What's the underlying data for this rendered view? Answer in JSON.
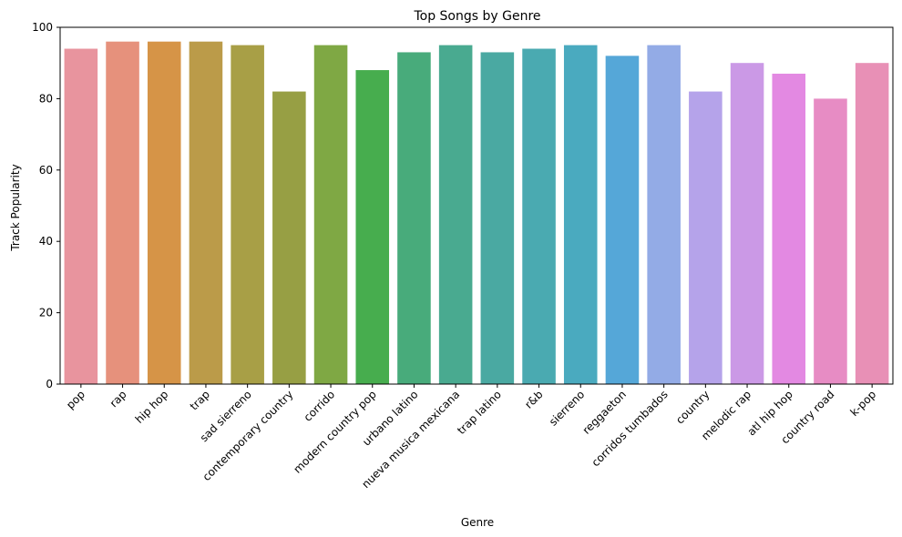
{
  "chart_data": {
    "type": "bar",
    "title": "Top Songs by Genre",
    "xlabel": "Genre",
    "ylabel": "Track Popularity",
    "ylim": [
      0,
      100
    ],
    "yticks": [
      0,
      20,
      40,
      60,
      80,
      100
    ],
    "grid": false,
    "categories": [
      "pop",
      "rap",
      "hip hop",
      "trap",
      "sad sierreno",
      "contemporary country",
      "corrido",
      "modern country pop",
      "urbano latino",
      "nueva musica mexicana",
      "trap latino",
      "r&b",
      "sierreno",
      "reggaeton",
      "corridos tumbados",
      "country",
      "melodic rap",
      "atl hip hop",
      "country road",
      "k-pop"
    ],
    "values": [
      94,
      96,
      96,
      96,
      95,
      82,
      95,
      88,
      93,
      95,
      93,
      94,
      95,
      92,
      95,
      82,
      90,
      87,
      80,
      90
    ],
    "colors": [
      "#e8949e",
      "#e6917c",
      "#d69447",
      "#bb9b49",
      "#a89f46",
      "#979f44",
      "#7fa844",
      "#47ad4e",
      "#48ab7b",
      "#49aa90",
      "#4aa9a2",
      "#4aaab1",
      "#4aaabf",
      "#55a7d8",
      "#93abe6",
      "#b5a3ea",
      "#cb99e6",
      "#e389e2",
      "#e78cc4",
      "#e890b6"
    ]
  }
}
